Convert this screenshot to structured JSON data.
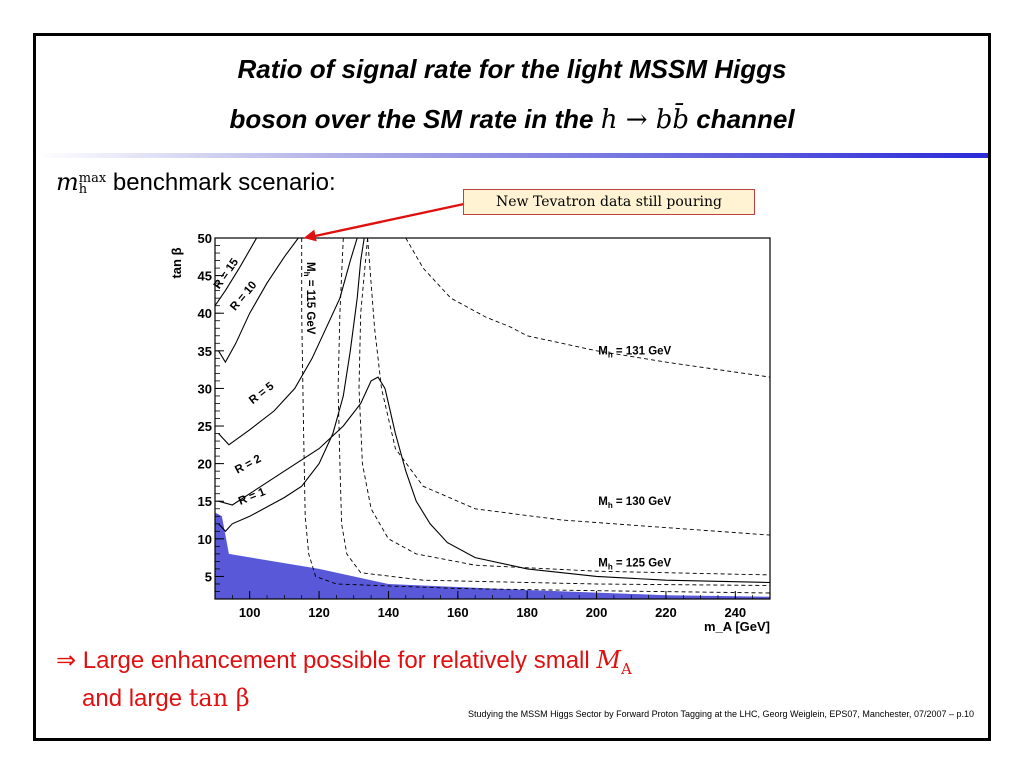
{
  "slide": {
    "title_line1": "Ratio of signal rate for the light MSSM Higgs",
    "title_line2_prefix": "boson over the SM rate in the ",
    "title_line2_math": "h → bb̄",
    "title_line2_suffix": " channel",
    "subtitle_symbol": "m",
    "subtitle_sup": "max",
    "subtitle_sub": "h",
    "subtitle_text": " benchmark scenario:",
    "callout": "New Tevatron data still pouring",
    "conclusion_arrow": "⇒",
    "conclusion_line1": " Large enhancement possible for relatively small ",
    "conclusion_math1": "M",
    "conclusion_math1_sub": "A",
    "conclusion_line2": "and large ",
    "conclusion_math2": "tan β",
    "footer": "Studying the MSSM Higgs Sector by Forward Proton Tagging at the LHC, Georg Weiglein, EPS07, Manchester, 07/2007 – p.10"
  },
  "colors": {
    "title_rule": "#2a2ad8",
    "excluded_region": "#5858d8",
    "conclusion_text": "#e01010",
    "callout_background": "#fff3d4",
    "callout_border": "#c04040",
    "callout_arrow": "#e01010"
  },
  "chart_data": {
    "type": "line",
    "xlabel": "m_A [GeV]",
    "ylabel": "tan β",
    "xlim": [
      90,
      250
    ],
    "ylim": [
      2,
      50
    ],
    "xticks": [
      100,
      120,
      140,
      160,
      180,
      200,
      220,
      240
    ],
    "yticks": [
      5,
      10,
      15,
      20,
      25,
      30,
      35,
      40,
      45,
      50
    ],
    "callout_target": {
      "x": 115,
      "y": 50
    },
    "excluded_region": {
      "label": "",
      "points": [
        [
          90,
          2
        ],
        [
          90,
          13.5
        ],
        [
          92,
          13
        ],
        [
          94,
          8
        ],
        [
          120,
          6
        ],
        [
          140,
          4
        ],
        [
          180,
          3.2
        ],
        [
          220,
          2.5
        ],
        [
          250,
          2.3
        ],
        [
          250,
          2
        ]
      ]
    },
    "solid_contours": [
      {
        "label": "R = 15",
        "points": [
          [
            90,
            41
          ],
          [
            93,
            43
          ],
          [
            97,
            46
          ],
          [
            102,
            50
          ]
        ]
      },
      {
        "label": "R = 10",
        "points": [
          [
            91,
            35
          ],
          [
            93,
            33.5
          ],
          [
            96,
            36
          ],
          [
            100,
            40
          ],
          [
            105,
            44
          ],
          [
            110,
            47.5
          ],
          [
            114,
            50
          ]
        ]
      },
      {
        "label": "R = 5",
        "points": [
          [
            91,
            24
          ],
          [
            94,
            22.5
          ],
          [
            100,
            24.5
          ],
          [
            107,
            27
          ],
          [
            113,
            30
          ],
          [
            118,
            34
          ],
          [
            122,
            38
          ],
          [
            126,
            42
          ],
          [
            129,
            47
          ],
          [
            131,
            50
          ]
        ]
      },
      {
        "label": "R = 2",
        "points": [
          [
            91,
            15
          ],
          [
            95,
            14.5
          ],
          [
            100,
            16
          ],
          [
            110,
            19
          ],
          [
            120,
            22
          ],
          [
            127,
            25
          ],
          [
            132,
            28
          ],
          [
            135,
            31
          ],
          [
            137,
            31.5
          ],
          [
            139,
            30
          ]
        ]
      },
      {
        "label": "R = 1",
        "points": [
          [
            91,
            12
          ],
          [
            93,
            11
          ],
          [
            95,
            12
          ],
          [
            100,
            13
          ],
          [
            110,
            15.5
          ],
          [
            115,
            17
          ],
          [
            120,
            20
          ],
          [
            124,
            24
          ],
          [
            127,
            29
          ],
          [
            129,
            35
          ],
          [
            131,
            42
          ],
          [
            132,
            47
          ],
          [
            133,
            50
          ]
        ]
      },
      {
        "label": "",
        "points": [
          [
            139,
            30
          ],
          [
            142,
            24
          ],
          [
            145,
            19
          ],
          [
            148,
            15
          ],
          [
            152,
            12
          ],
          [
            157,
            9.5
          ],
          [
            165,
            7.5
          ],
          [
            180,
            6
          ],
          [
            200,
            5
          ],
          [
            220,
            4.5
          ],
          [
            250,
            4.2
          ]
        ]
      }
    ],
    "dashed_contours": [
      {
        "label": "M_h = 115 GeV",
        "points": [
          [
            115,
            50
          ],
          [
            115,
            40
          ],
          [
            115.5,
            25
          ],
          [
            116,
            13
          ],
          [
            117,
            8
          ],
          [
            119,
            5
          ],
          [
            125,
            4
          ],
          [
            160,
            3.4
          ],
          [
            200,
            3.1
          ],
          [
            250,
            2.8
          ]
        ]
      },
      {
        "label": "",
        "points": [
          [
            127,
            50
          ],
          [
            126,
            40
          ],
          [
            125.5,
            30
          ],
          [
            126,
            20
          ],
          [
            126.5,
            12
          ],
          [
            128,
            8
          ],
          [
            132,
            5.5
          ],
          [
            150,
            4.5
          ],
          [
            200,
            4
          ],
          [
            250,
            3.8
          ]
        ]
      },
      {
        "label": "M_h = 125 GeV",
        "points": [
          [
            134,
            50
          ],
          [
            132,
            40
          ],
          [
            131.5,
            30
          ],
          [
            132.5,
            20
          ],
          [
            135,
            14
          ],
          [
            140,
            10
          ],
          [
            148,
            8
          ],
          [
            165,
            6.5
          ],
          [
            200,
            5.7
          ],
          [
            240,
            5.3
          ],
          [
            250,
            5.2
          ]
        ]
      },
      {
        "label": "M_h = 130 GeV",
        "points": [
          [
            134,
            50
          ],
          [
            136,
            38
          ],
          [
            138,
            30
          ],
          [
            142,
            22
          ],
          [
            150,
            17
          ],
          [
            165,
            14
          ],
          [
            190,
            12.5
          ],
          [
            220,
            11.5
          ],
          [
            250,
            10.5
          ]
        ]
      },
      {
        "label": "M_h = 131 GeV",
        "points": [
          [
            145,
            50
          ],
          [
            150,
            46
          ],
          [
            158,
            42
          ],
          [
            168,
            39.5
          ],
          [
            175,
            38.2
          ],
          [
            180,
            37
          ],
          [
            200,
            35
          ],
          [
            220,
            33.5
          ],
          [
            250,
            31.5
          ]
        ]
      }
    ],
    "annotations": [
      {
        "text": "R = 15",
        "x": 94,
        "y": 45,
        "angle": -55
      },
      {
        "text": "R = 10",
        "x": 99,
        "y": 42,
        "angle": -50
      },
      {
        "text": "M",
        "sub": "h",
        "rest": " = 115 GeV",
        "x": 116.5,
        "y": 42,
        "angle": 90
      },
      {
        "text": "R = 5",
        "x": 104,
        "y": 29,
        "angle": -38
      },
      {
        "text": "R = 2",
        "x": 100,
        "y": 19.5,
        "angle": -28
      },
      {
        "text": "R = 1",
        "x": 101,
        "y": 15.2,
        "angle": -22
      },
      {
        "text": "M",
        "sub": "h",
        "rest": " = 131 GeV",
        "x": 211,
        "y": 34.5,
        "angle": 0
      },
      {
        "text": "M",
        "sub": "h",
        "rest": " = 130 GeV",
        "x": 211,
        "y": 14.5,
        "angle": 0
      },
      {
        "text": "M",
        "sub": "h",
        "rest": " = 125 GeV",
        "x": 211,
        "y": 6.3,
        "angle": 0
      }
    ]
  }
}
